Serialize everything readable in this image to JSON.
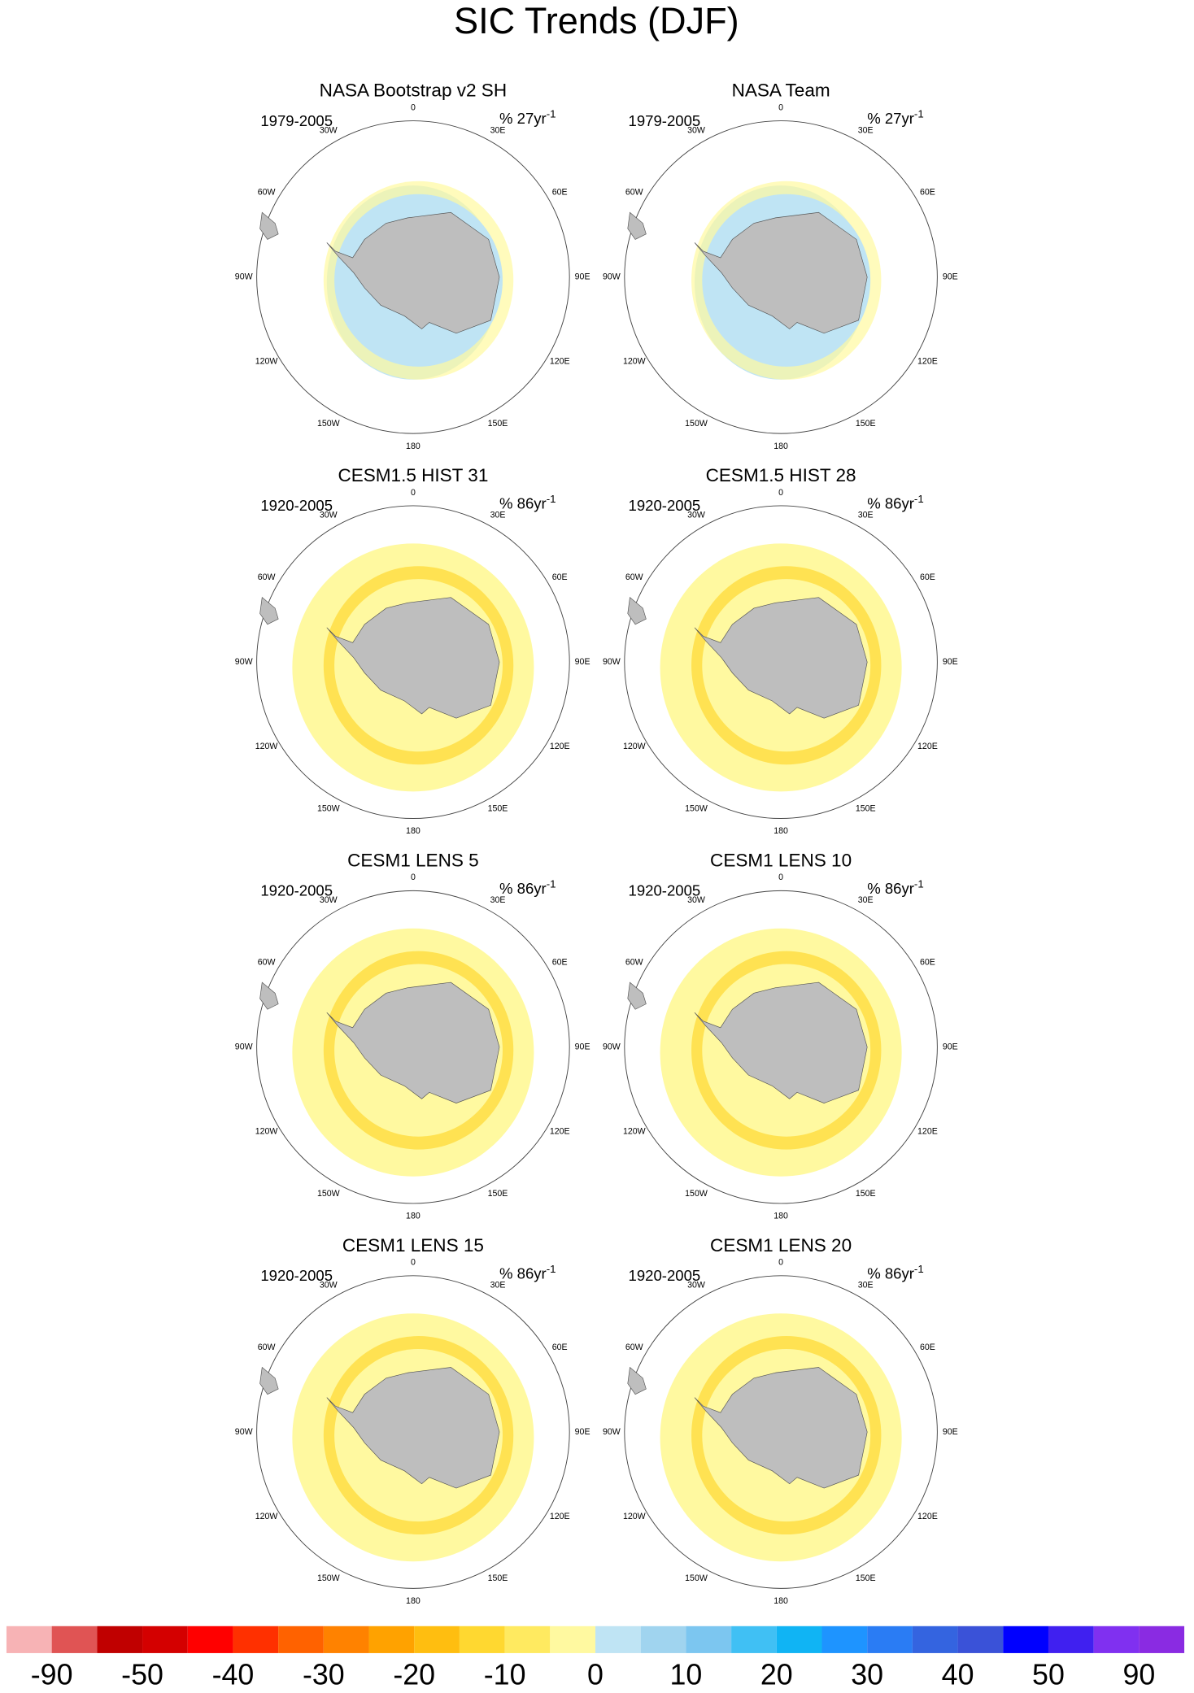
{
  "chart_data": {
    "type": "polar-map-grid",
    "title": "SIC Trends (DJF)",
    "lon_labels": [
      "0",
      "30E",
      "60E",
      "90E",
      "120E",
      "150E",
      "180",
      "150W",
      "120W",
      "90W",
      "60W",
      "30W"
    ],
    "panels": [
      {
        "title": "NASA Bootstrap v2 SH",
        "period": "1979-2005",
        "unit": "% 27yr",
        "unit_sup": "-1"
      },
      {
        "title": "NASA Team",
        "period": "1979-2005",
        "unit": "% 27yr",
        "unit_sup": "-1"
      },
      {
        "title": "CESM1.5 HIST 31",
        "period": "1920-2005",
        "unit": "% 86yr",
        "unit_sup": "-1"
      },
      {
        "title": "CESM1.5 HIST 28",
        "period": "1920-2005",
        "unit": "% 86yr",
        "unit_sup": "-1"
      },
      {
        "title": "CESM1 LENS 5",
        "period": "1920-2005",
        "unit": "% 86yr",
        "unit_sup": "-1"
      },
      {
        "title": "CESM1 LENS 10",
        "period": "1920-2005",
        "unit": "% 86yr",
        "unit_sup": "-1"
      },
      {
        "title": "CESM1 LENS 15",
        "period": "1920-2005",
        "unit": "% 86yr",
        "unit_sup": "-1"
      },
      {
        "title": "CESM1 LENS 20",
        "period": "1920-2005",
        "unit": "% 86yr",
        "unit_sup": "-1"
      }
    ],
    "colorbar": {
      "colors": [
        "#f7b3b5",
        "#e05454",
        "#c00000",
        "#d40000",
        "#ff0000",
        "#ff3000",
        "#ff6200",
        "#ff8200",
        "#ffa200",
        "#ffbe10",
        "#ffd830",
        "#ffea60",
        "#fff9a0",
        "#bfe4f4",
        "#a0d4ef",
        "#7cc6f0",
        "#40c0f4",
        "#10b4f4",
        "#1e94ff",
        "#2a7cf4",
        "#3464e0",
        "#3a52d8",
        "#0000ff",
        "#4020f0",
        "#8030f0",
        "#8a2be2"
      ],
      "ticks": [
        -90,
        -50,
        -40,
        -30,
        -20,
        -10,
        0,
        10,
        20,
        30,
        40,
        50,
        90
      ]
    }
  }
}
